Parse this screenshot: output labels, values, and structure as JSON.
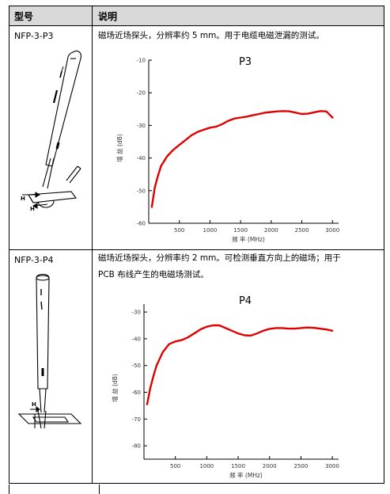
{
  "table": {
    "col_model": "型号",
    "col_desc": "说明",
    "rows": [
      {
        "model": "NFP-3-P3",
        "desc": "磁场近场探头，分辨率约 5 mm。用于电缆电磁泄漏的测试。",
        "probe_labels": [
          "H",
          "H"
        ]
      },
      {
        "model": "NFP-3-P4",
        "desc1": "磁场近场探头，分辨率约 2 mm。可检测垂直方向上的磁场；用于",
        "desc2": "PCB 布线产生的电磁场测试。",
        "probe_labels": [
          "H"
        ]
      }
    ]
  },
  "chart_data": [
    {
      "type": "line",
      "title": "P3",
      "xlabel": "频 率 (MHz)",
      "ylabel": "增 益 (dB)",
      "xlim": [
        0,
        3100
      ],
      "ylim": [
        -60,
        -10
      ],
      "xticks": [
        0,
        500,
        1000,
        1500,
        2000,
        2500,
        3000
      ],
      "yticks": [
        -10,
        -20,
        -30,
        -40,
        -50,
        -60
      ],
      "color": "#e00000",
      "series": [
        {
          "x": [
            50,
            100,
            150,
            200,
            300,
            400,
            500,
            600,
            700,
            800,
            900,
            1000,
            1100,
            1200,
            1300,
            1400,
            1500,
            1600,
            1700,
            1800,
            1900,
            2000,
            2100,
            2200,
            2300,
            2400,
            2500,
            2600,
            2700,
            2800,
            2900,
            3000
          ],
          "y": [
            -55,
            -49,
            -45.5,
            -42.5,
            -39.5,
            -37.5,
            -36,
            -34.5,
            -33,
            -32,
            -31.3,
            -30.7,
            -30.4,
            -29.6,
            -28.6,
            -27.9,
            -27.6,
            -27.3,
            -26.9,
            -26.5,
            -26.1,
            -25.9,
            -25.7,
            -25.6,
            -25.7,
            -26.1,
            -26.5,
            -26.4,
            -26,
            -25.6,
            -25.7,
            -27.6
          ]
        }
      ]
    },
    {
      "type": "line",
      "title": "P4",
      "xlabel": "频 率 (MHz)",
      "ylabel": "增 益 (dB)",
      "xlim": [
        0,
        3100
      ],
      "ylim": [
        -85,
        -27
      ],
      "xticks": [
        0,
        500,
        1000,
        1500,
        2000,
        2500,
        3000
      ],
      "yticks": [
        -30,
        -40,
        -50,
        -60,
        -70,
        -80
      ],
      "color": "#e00000",
      "series": [
        {
          "x": [
            50,
            100,
            150,
            200,
            300,
            400,
            500,
            600,
            700,
            800,
            900,
            1000,
            1100,
            1200,
            1300,
            1400,
            1500,
            1600,
            1700,
            1800,
            1900,
            2000,
            2100,
            2200,
            2300,
            2400,
            2500,
            2600,
            2700,
            2800,
            2900,
            3000
          ],
          "y": [
            -64.5,
            -58.5,
            -54,
            -50,
            -45,
            -42,
            -41,
            -40.5,
            -39.5,
            -38,
            -36.5,
            -35.5,
            -35,
            -35,
            -36,
            -37,
            -38,
            -38.7,
            -38.8,
            -38,
            -37,
            -36.3,
            -36,
            -36,
            -36.2,
            -36.2,
            -36,
            -35.8,
            -35.9,
            -36.2,
            -36.5,
            -37
          ]
        }
      ]
    }
  ]
}
